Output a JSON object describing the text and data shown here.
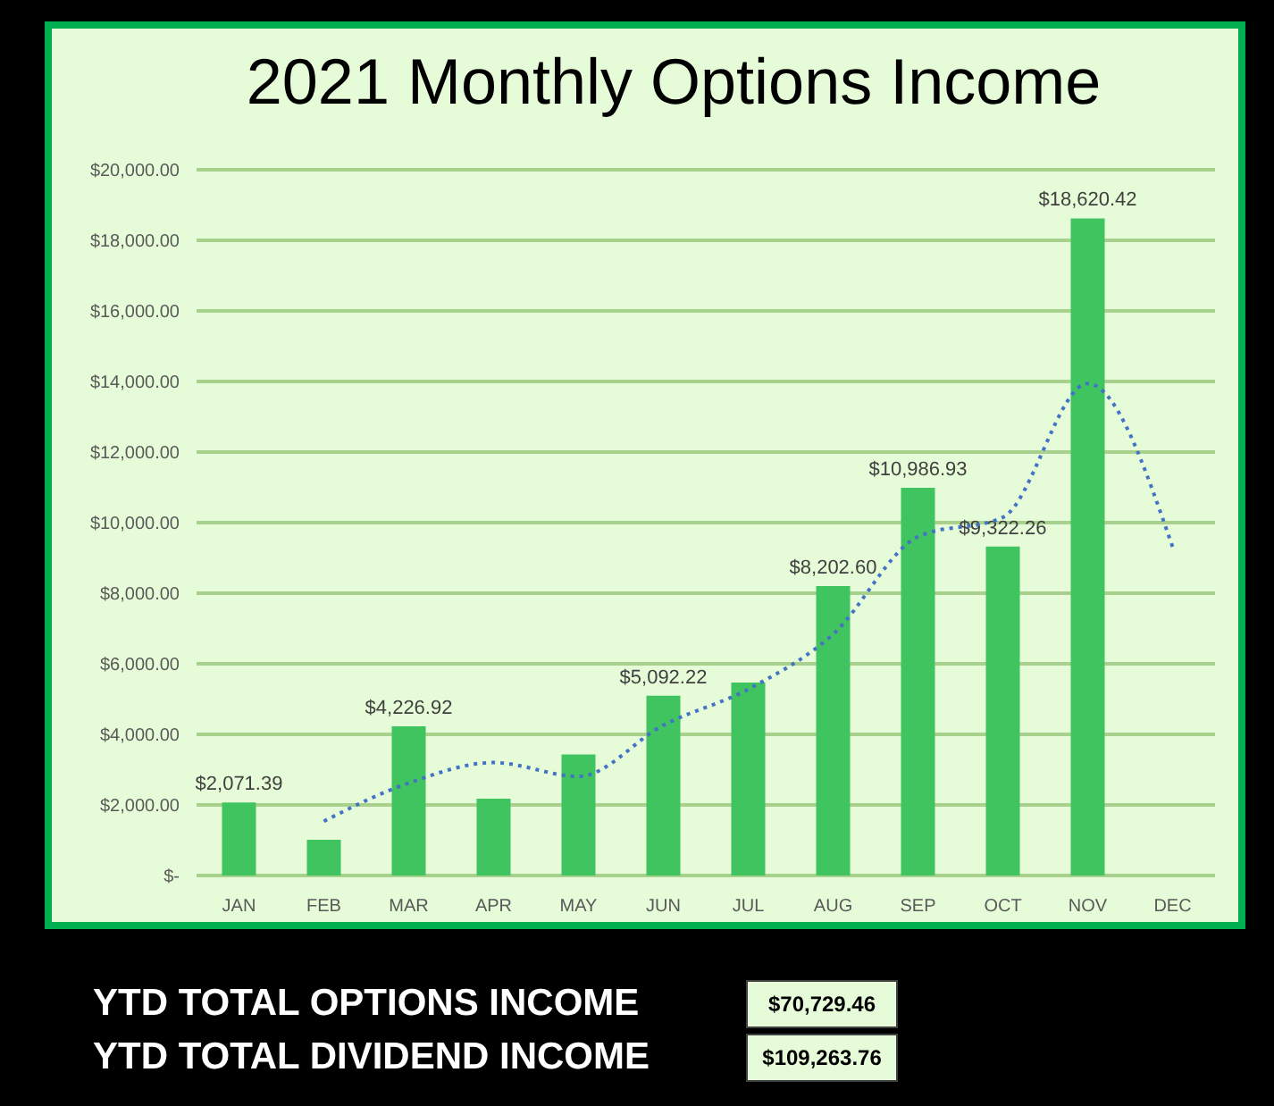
{
  "chart_data": {
    "type": "bar",
    "title": "2021 Monthly Options Income",
    "categories": [
      "JAN",
      "FEB",
      "MAR",
      "APR",
      "MAY",
      "JUN",
      "JUL",
      "AUG",
      "SEP",
      "OCT",
      "NOV",
      "DEC"
    ],
    "series": [
      {
        "color": "#40c460",
        "values": [
          2071.39,
          1010,
          4226.92,
          2180,
          3430,
          5092.22,
          5470,
          8202.6,
          10986.93,
          9322.26,
          18620.42,
          null
        ],
        "value_labels": [
          "$2,071.39",
          null,
          "$4,226.92",
          null,
          null,
          "$5,092.22",
          null,
          "$8,202.60",
          "$10,986.93",
          "$9,322.26",
          "$18,620.42",
          null
        ]
      },
      {
        "type": "line",
        "color": "#4472c4",
        "line_style": "dotted",
        "values": [
          null,
          1540,
          2620,
          3200,
          2810,
          4260,
          5280,
          6840,
          9600,
          10150,
          13940,
          9310
        ]
      }
    ],
    "ylim": [
      0,
      20000
    ],
    "yticks": [
      {
        "value": 0,
        "label": "$-"
      },
      {
        "value": 2000,
        "label": "$2,000.00"
      },
      {
        "value": 4000,
        "label": "$4,000.00"
      },
      {
        "value": 6000,
        "label": "$6,000.00"
      },
      {
        "value": 8000,
        "label": "$8,000.00"
      },
      {
        "value": 10000,
        "label": "$10,000.00"
      },
      {
        "value": 12000,
        "label": "$12,000.00"
      },
      {
        "value": 14000,
        "label": "$14,000.00"
      },
      {
        "value": 16000,
        "label": "$16,000.00"
      },
      {
        "value": 18000,
        "label": "$18,000.00"
      },
      {
        "value": 20000,
        "label": "$20,000.00"
      }
    ],
    "grid": "y",
    "annotations": [
      "YTD TOTAL OPTIONS INCOME",
      "$70,729.46",
      "YTD TOTAL DIVIDEND INCOME",
      "$109,263.76"
    ]
  }
}
